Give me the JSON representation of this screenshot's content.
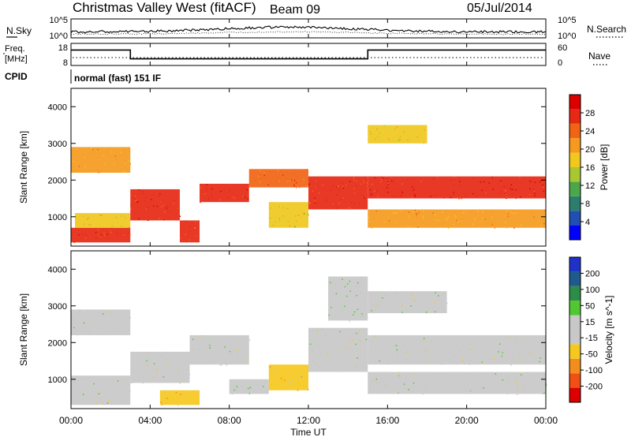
{
  "header": {
    "station": "Christmas Valley West (fitACF)",
    "beam": "Beam 09",
    "date": "05/Jul/2014"
  },
  "nsky_panel": {
    "left_label": "N.Sky",
    "right_label": "N.Search",
    "left_ticks": [
      "10^5",
      "10^0"
    ],
    "right_ticks": [
      "10^5",
      "10^0"
    ]
  },
  "freq_panel": {
    "left_label_line1": "Freq.",
    "left_label_line2": "[MHz]",
    "right_label": "Nave",
    "left_ticks": [
      "18",
      "8"
    ],
    "right_ticks": [
      "60",
      "0"
    ]
  },
  "cpid": {
    "label": "CPID",
    "value": "normal (fast) 151 IF"
  },
  "chart_data": [
    {
      "type": "heatmap",
      "name": "power",
      "ylabel": "Slant Range [km]",
      "yticks": [
        "4000",
        "3000",
        "2000",
        "1000"
      ],
      "ylim": [
        200,
        4500
      ],
      "colorbar_label": "Power [dB]",
      "colorbar_ticks": [
        "28",
        "24",
        "20",
        "16",
        "12",
        "8",
        "4"
      ],
      "colorbar_range": [
        0,
        32
      ],
      "colors": [
        "#0000ff",
        "#1f4fb0",
        "#2b7d6e",
        "#4ca64a",
        "#a8c832",
        "#f0c81e",
        "#f59a1e",
        "#f06414",
        "#e62814",
        "#dc0000"
      ],
      "bands": [
        {
          "t0": 0.0,
          "t1": 3.0,
          "r0": 300,
          "r1": 700,
          "v": 27
        },
        {
          "t0": 0.2,
          "t1": 3.0,
          "r0": 700,
          "r1": 1100,
          "v": 18
        },
        {
          "t0": 0.0,
          "t1": 3.0,
          "r0": 2200,
          "r1": 2900,
          "v": 20
        },
        {
          "t0": 3.0,
          "t1": 5.5,
          "r0": 900,
          "r1": 1750,
          "v": 28
        },
        {
          "t0": 5.5,
          "t1": 6.5,
          "r0": 300,
          "r1": 900,
          "v": 26
        },
        {
          "t0": 6.5,
          "t1": 9.0,
          "r0": 1400,
          "r1": 1900,
          "v": 27
        },
        {
          "t0": 9.0,
          "t1": 12.0,
          "r0": 1800,
          "r1": 2300,
          "v": 24
        },
        {
          "t0": 12.0,
          "t1": 15.0,
          "r0": 1200,
          "r1": 2100,
          "v": 26
        },
        {
          "t0": 10.0,
          "t1": 12.0,
          "r0": 700,
          "r1": 1400,
          "v": 16
        },
        {
          "t0": 15.0,
          "t1": 24.0,
          "r0": 1500,
          "r1": 2100,
          "v": 28
        },
        {
          "t0": 15.0,
          "t1": 24.0,
          "r0": 700,
          "r1": 1200,
          "v": 20
        },
        {
          "t0": 15.0,
          "t1": 18.0,
          "r0": 3000,
          "r1": 3500,
          "v": 18
        }
      ]
    },
    {
      "type": "heatmap",
      "name": "velocity",
      "ylabel": "Slant Range [km]",
      "yticks": [
        "4000",
        "3000",
        "2000",
        "1000"
      ],
      "ylim": [
        200,
        4500
      ],
      "colorbar_label": "Velocity [m s^-1]",
      "colorbar_ticks": [
        "200",
        "100",
        "50",
        "15",
        "-15",
        "-50",
        "-100",
        "-200"
      ],
      "colorbar_range": [
        -250,
        250
      ],
      "colors": [
        "#dc0000",
        "#f05014",
        "#f58c1e",
        "#f5c81e",
        "#c8c8c8",
        "#c8c8c8",
        "#50c832",
        "#2d8c46",
        "#1e5a8c",
        "#1e32c8"
      ],
      "bands": [
        {
          "t0": 0.0,
          "t1": 3.0,
          "r0": 300,
          "r1": 1100,
          "v": 0
        },
        {
          "t0": 0.0,
          "t1": 3.0,
          "r0": 2200,
          "r1": 2900,
          "v": 0
        },
        {
          "t0": 3.0,
          "t1": 6.0,
          "r0": 900,
          "r1": 1750,
          "v": 0
        },
        {
          "t0": 4.5,
          "t1": 6.5,
          "r0": 300,
          "r1": 700,
          "v": -80
        },
        {
          "t0": 6.0,
          "t1": 9.0,
          "r0": 1400,
          "r1": 2200,
          "v": 0
        },
        {
          "t0": 8.0,
          "t1": 10.0,
          "r0": 600,
          "r1": 1000,
          "v": 40
        },
        {
          "t0": 10.0,
          "t1": 12.0,
          "r0": 700,
          "r1": 1400,
          "v": -60
        },
        {
          "t0": 12.0,
          "t1": 15.0,
          "r0": 1200,
          "r1": 2400,
          "v": 0
        },
        {
          "t0": 13.0,
          "t1": 15.0,
          "r0": 2600,
          "r1": 3800,
          "v": 40
        },
        {
          "t0": 15.0,
          "t1": 24.0,
          "r0": 1400,
          "r1": 2200,
          "v": 0
        },
        {
          "t0": 15.0,
          "t1": 24.0,
          "r0": 600,
          "r1": 1200,
          "v": 0
        },
        {
          "t0": 15.0,
          "t1": 19.0,
          "r0": 2800,
          "r1": 3400,
          "v": 0
        }
      ]
    }
  ],
  "time_axis": {
    "label": "Time UT",
    "ticks": [
      "00:00",
      "04:00",
      "08:00",
      "12:00",
      "16:00",
      "20:00",
      "00:00"
    ],
    "range_hours": [
      0,
      24
    ]
  },
  "freq_series": {
    "t": [
      0,
      3,
      3,
      15,
      15,
      24
    ],
    "f": [
      15,
      15,
      11,
      11,
      15,
      15
    ]
  }
}
